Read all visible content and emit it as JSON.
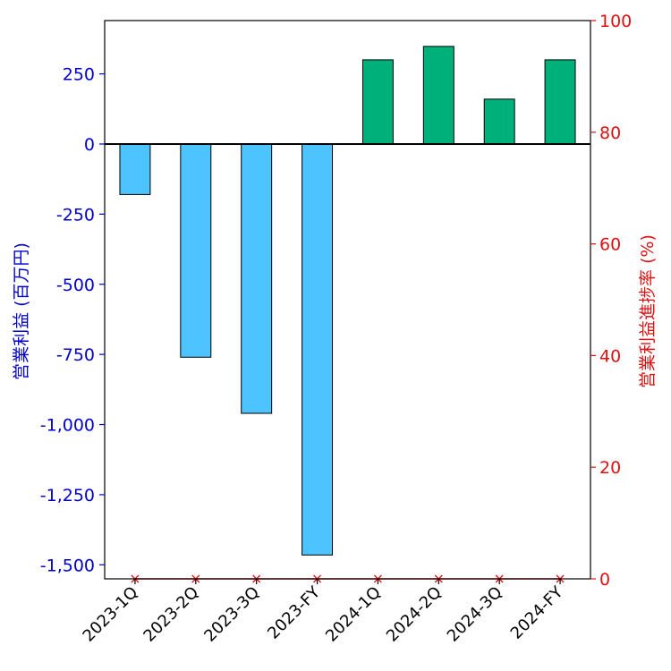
{
  "chart_data": {
    "type": "bar",
    "categories": [
      "2023-1Q",
      "2023-2Q",
      "2023-3Q",
      "2023-FY",
      "2024-1Q",
      "2024-2Q",
      "2024-3Q",
      "2024-FY"
    ],
    "series": [
      {
        "values": [
          -180,
          -760,
          -960,
          -1465,
          300,
          348,
          160,
          300
        ],
        "axis": "left"
      },
      {
        "values": [
          0,
          0,
          0,
          0,
          0,
          0,
          0,
          0
        ],
        "axis": "right",
        "marker": "x"
      }
    ],
    "ylabel": "営業利益 (百万円)",
    "ylabel_right": "営業利益進捗率 (%)",
    "ylim": [
      -1550,
      440
    ],
    "ylim_right": [
      0,
      100
    ],
    "yticks": [
      250,
      0,
      -250,
      -500,
      -750,
      -1000,
      -1250,
      -1500
    ],
    "ytick_labels": [
      "250",
      "0",
      "-250",
      "-500",
      "-750",
      "-1,000",
      "-1,250",
      "-1,500"
    ],
    "yticks_right": [
      100,
      80,
      60,
      40,
      20,
      0
    ],
    "ytick_labels_right": [
      "100",
      "80",
      "60",
      "40",
      "20",
      "0"
    ],
    "grid": false,
    "colors": {
      "negative_bar": "#4dc3ff",
      "positive_bar": "#00b07a",
      "left_axis": "#0000cc",
      "right_axis": "#dd1111",
      "marker": "#dd1111"
    }
  }
}
